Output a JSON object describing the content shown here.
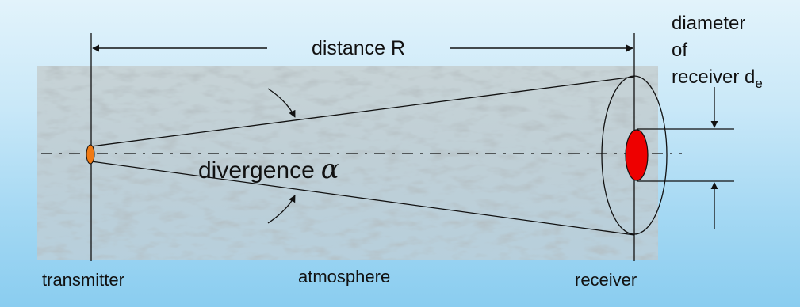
{
  "labels": {
    "distance": "distance R",
    "diameter_line1": "diameter",
    "diameter_line2": "of",
    "diameter_line3": "receiver d",
    "diameter_subscript": "e",
    "divergence": "divergence",
    "divergence_symbol": "α",
    "transmitter": "transmitter",
    "atmosphere": "atmosphere",
    "receiver": "receiver"
  },
  "colors": {
    "transmitter_fill": "#f07a14",
    "receiver_spot_fill": "#ee0000",
    "atmosphere_fill": "#b8c9cf",
    "line": "#111111"
  }
}
